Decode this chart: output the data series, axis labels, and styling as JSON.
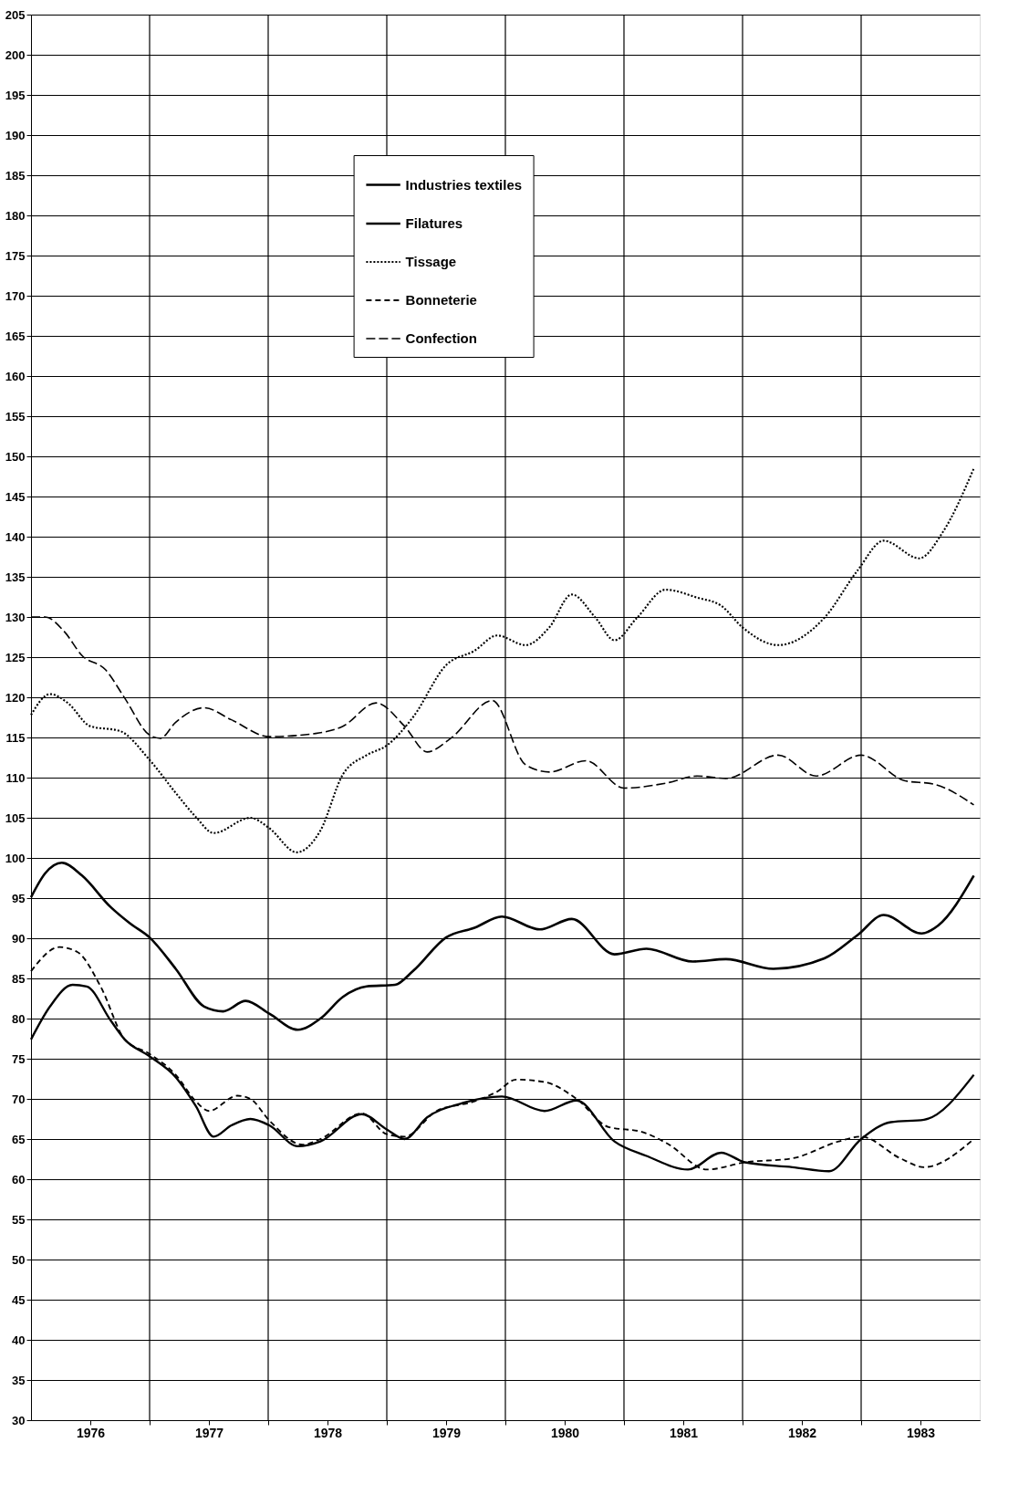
{
  "chart_data": {
    "type": "line",
    "xlim": [
      1976,
      1984
    ],
    "ylim": [
      30,
      205
    ],
    "xticks": [
      {
        "value": 1976.5,
        "label": "1976"
      },
      {
        "value": 1977,
        "label": null
      },
      {
        "value": 1977.5,
        "label": "1977"
      },
      {
        "value": 1978,
        "label": null
      },
      {
        "value": 1978.5,
        "label": "1978"
      },
      {
        "value": 1979,
        "label": null
      },
      {
        "value": 1979.5,
        "label": "1979"
      },
      {
        "value": 1980,
        "label": null
      },
      {
        "value": 1980.5,
        "label": "1980"
      },
      {
        "value": 1981,
        "label": null
      },
      {
        "value": 1981.5,
        "label": "1981"
      },
      {
        "value": 1982,
        "label": null
      },
      {
        "value": 1982.5,
        "label": "1982"
      },
      {
        "value": 1983,
        "label": null
      },
      {
        "value": 1983.5,
        "label": "1983"
      }
    ],
    "yticks": [
      30,
      35,
      40,
      45,
      50,
      55,
      60,
      65,
      70,
      75,
      80,
      85,
      90,
      95,
      100,
      105,
      110,
      115,
      120,
      125,
      130,
      135,
      140,
      145,
      150,
      155,
      160,
      165,
      170,
      175,
      180,
      185,
      190,
      195,
      200,
      205
    ],
    "grid": true,
    "legend": "top",
    "series": [
      {
        "name": "Industries textiles",
        "color": "#000000",
        "line_style": "solid",
        "x": [
          1976.0,
          1976.12,
          1976.26,
          1976.43,
          1976.67,
          1976.83,
          1977.0,
          1977.22,
          1977.46,
          1977.62,
          1977.81,
          1978.01,
          1978.25,
          1978.44,
          1978.63,
          1978.83,
          1979.07,
          1979.22,
          1979.5,
          1979.74,
          1979.97,
          1980.29,
          1980.56,
          1980.92,
          1981.19,
          1981.58,
          1981.86,
          1982.26,
          1982.69,
          1982.97,
          1983.19,
          1983.51,
          1983.65,
          1983.95
        ],
        "values": [
          95.1,
          98.1,
          99.4,
          97.8,
          93.9,
          91.9,
          90.1,
          86.2,
          81.5,
          80.9,
          82.2,
          80.6,
          78.6,
          80.0,
          82.7,
          84.0,
          84.2,
          85.9,
          90.1,
          91.3,
          92.7,
          91.1,
          92.4,
          88.0,
          88.7,
          87.1,
          87.4,
          86.2,
          87.5,
          90.4,
          92.9,
          90.6,
          91.6,
          97.8
        ]
      },
      {
        "name": "Filatures",
        "color": "#000000",
        "line_style": "solid",
        "x": [
          1976.0,
          1976.16,
          1976.35,
          1976.47,
          1976.67,
          1976.79,
          1977.0,
          1977.22,
          1977.39,
          1977.54,
          1977.69,
          1977.85,
          1978.01,
          1978.25,
          1978.44,
          1978.79,
          1979.0,
          1979.15,
          1979.34,
          1979.62,
          1979.97,
          1980.33,
          1980.6,
          1980.92,
          1981.19,
          1981.54,
          1981.82,
          1982.02,
          1982.42,
          1982.73,
          1983.0,
          1983.25,
          1983.53,
          1983.95
        ],
        "values": [
          77.4,
          81.5,
          84.2,
          84.0,
          79.8,
          77.4,
          75.3,
          72.7,
          69.1,
          65.3,
          66.7,
          67.5,
          66.7,
          64.1,
          64.7,
          68.1,
          66.2,
          65.0,
          67.7,
          69.4,
          70.3,
          68.5,
          69.8,
          64.7,
          62.9,
          61.2,
          63.3,
          62.1,
          61.5,
          61.0,
          65.0,
          67.1,
          67.4,
          73.0
        ]
      },
      {
        "name": "Tissage",
        "color": "#000000",
        "line_style": "dotted",
        "x": [
          1976.0,
          1976.16,
          1976.31,
          1976.5,
          1976.75,
          1977.0,
          1977.22,
          1977.39,
          1977.54,
          1977.85,
          1978.01,
          1978.24,
          1978.44,
          1978.63,
          1978.83,
          1979.0,
          1979.22,
          1979.5,
          1979.74,
          1979.93,
          1980.17,
          1980.37,
          1980.56,
          1980.76,
          1980.92,
          1981.11,
          1981.35,
          1981.62,
          1981.82,
          1982.0,
          1982.3,
          1982.69,
          1982.97,
          1983.19,
          1983.49,
          1983.69,
          1983.95
        ],
        "values": [
          117.8,
          120.4,
          119.3,
          116.4,
          115.8,
          112.2,
          108.1,
          105.1,
          103.1,
          105.0,
          103.7,
          100.7,
          103.4,
          110.4,
          112.8,
          114.0,
          117.5,
          124.0,
          125.8,
          127.7,
          126.5,
          128.7,
          132.8,
          129.9,
          127.1,
          129.9,
          133.4,
          132.4,
          131.4,
          128.7,
          126.5,
          129.9,
          135.8,
          139.5,
          137.3,
          140.6,
          148.5
        ]
      },
      {
        "name": "Bonneterie",
        "color": "#000000",
        "line_style": "dashed",
        "x": [
          1976.0,
          1976.24,
          1976.39,
          1976.59,
          1976.79,
          1977.0,
          1977.22,
          1977.39,
          1977.5,
          1977.74,
          1977.85,
          1978.01,
          1978.29,
          1978.44,
          1978.79,
          1979.0,
          1979.15,
          1979.42,
          1979.74,
          1979.93,
          1980.09,
          1980.33,
          1980.6,
          1980.87,
          1981.15,
          1981.37,
          1981.7,
          1982.02,
          1982.42,
          1982.81,
          1983.0,
          1983.33,
          1983.53,
          1983.95
        ],
        "values": [
          85.9,
          88.9,
          88.3,
          83.9,
          77.4,
          75.6,
          73.0,
          69.7,
          68.5,
          70.4,
          70.0,
          67.3,
          64.3,
          65.0,
          68.2,
          65.6,
          65.3,
          68.5,
          69.7,
          70.9,
          72.4,
          72.1,
          70.0,
          66.5,
          65.9,
          64.4,
          61.2,
          62.1,
          62.6,
          64.7,
          65.3,
          62.6,
          61.5,
          65.0
        ]
      },
      {
        "name": "Confection",
        "color": "#000000",
        "line_style": "dashed",
        "x": [
          1976.0,
          1976.12,
          1976.28,
          1976.43,
          1976.63,
          1976.79,
          1977.0,
          1977.09,
          1977.22,
          1977.46,
          1977.69,
          1978.01,
          1978.4,
          1978.63,
          1978.91,
          1979.15,
          1979.34,
          1979.54,
          1979.89,
          1980.17,
          1980.37,
          1980.68,
          1981.0,
          1981.35,
          1981.62,
          1981.86,
          1982.3,
          1982.62,
          1983.0,
          1983.37,
          1983.61,
          1983.95
        ],
        "values": [
          130.0,
          130.0,
          128.2,
          125.2,
          123.4,
          119.9,
          115.3,
          114.9,
          116.9,
          118.7,
          117.2,
          115.1,
          115.5,
          116.4,
          119.3,
          116.4,
          113.2,
          114.9,
          119.6,
          111.6,
          110.7,
          112.1,
          108.7,
          109.3,
          110.2,
          109.9,
          112.8,
          110.2,
          112.8,
          109.6,
          109.2,
          106.6
        ]
      }
    ]
  }
}
